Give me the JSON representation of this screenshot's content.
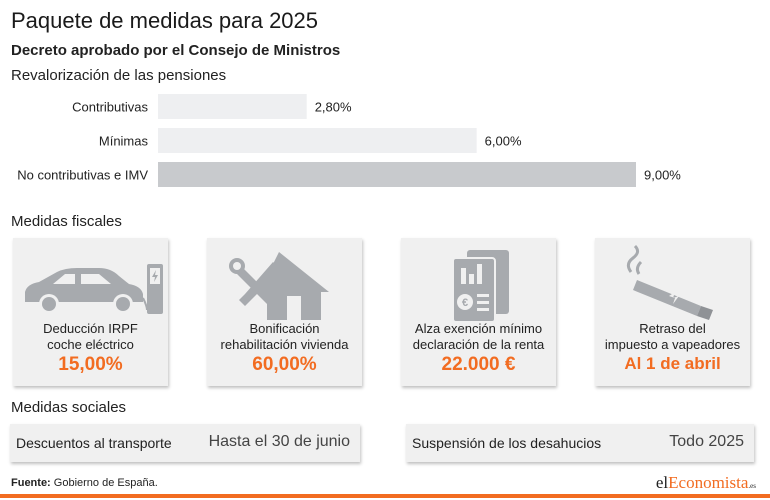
{
  "title": "Paquete de medidas para 2025",
  "subtitle": "Decreto aprobado por el Consejo de Ministros",
  "chart_data": {
    "type": "bar",
    "orientation": "horizontal",
    "title": "Revalorización de las pensiones",
    "categories": [
      "Contributivas",
      "Mínimas",
      "No contributivas e IMV"
    ],
    "values": [
      2.8,
      6.0,
      9.0
    ],
    "value_labels": [
      "2,80%",
      "6,00%",
      "9,00%"
    ],
    "unit": "%",
    "xlim": [
      0,
      9.0
    ],
    "bar_colors": [
      "#eeeff1",
      "#eeeff1",
      "#c8cacd"
    ],
    "grid": false,
    "legend": "none"
  },
  "fiscal": {
    "title": "Medidas fiscales",
    "cards": [
      {
        "icon": "electric-car-icon",
        "label_line1": "Deducción IRPF",
        "label_line2": "coche eléctrico",
        "value": "15,00%"
      },
      {
        "icon": "house-tools-icon",
        "label_line1": "Bonificación",
        "label_line2": "rehabilitación vivienda",
        "value": "60,00%"
      },
      {
        "icon": "tax-document-icon",
        "label_line1": "Alza exención mínimo",
        "label_line2": "declaración de la renta",
        "value": "22.000 €"
      },
      {
        "icon": "vape-icon",
        "label_line1": "Retraso del",
        "label_line2": "impuesto a vapeadores",
        "value": "Al 1 de abril"
      }
    ]
  },
  "social": {
    "title": "Medidas sociales",
    "items": [
      {
        "label": "Descuentos al transporte",
        "value": "Hasta el 30 de junio"
      },
      {
        "label": "Suspensión de los desahucios",
        "value": "Todo 2025"
      }
    ]
  },
  "source": {
    "label": "Fuente:",
    "text": " Gobierno de España."
  },
  "logo": {
    "part1": "el",
    "part2": "Economista",
    "part3": ".es"
  },
  "colors": {
    "accent": "#f26c21",
    "card_bg": "#f0f0f0",
    "icon_gray": "#a7aaae"
  }
}
